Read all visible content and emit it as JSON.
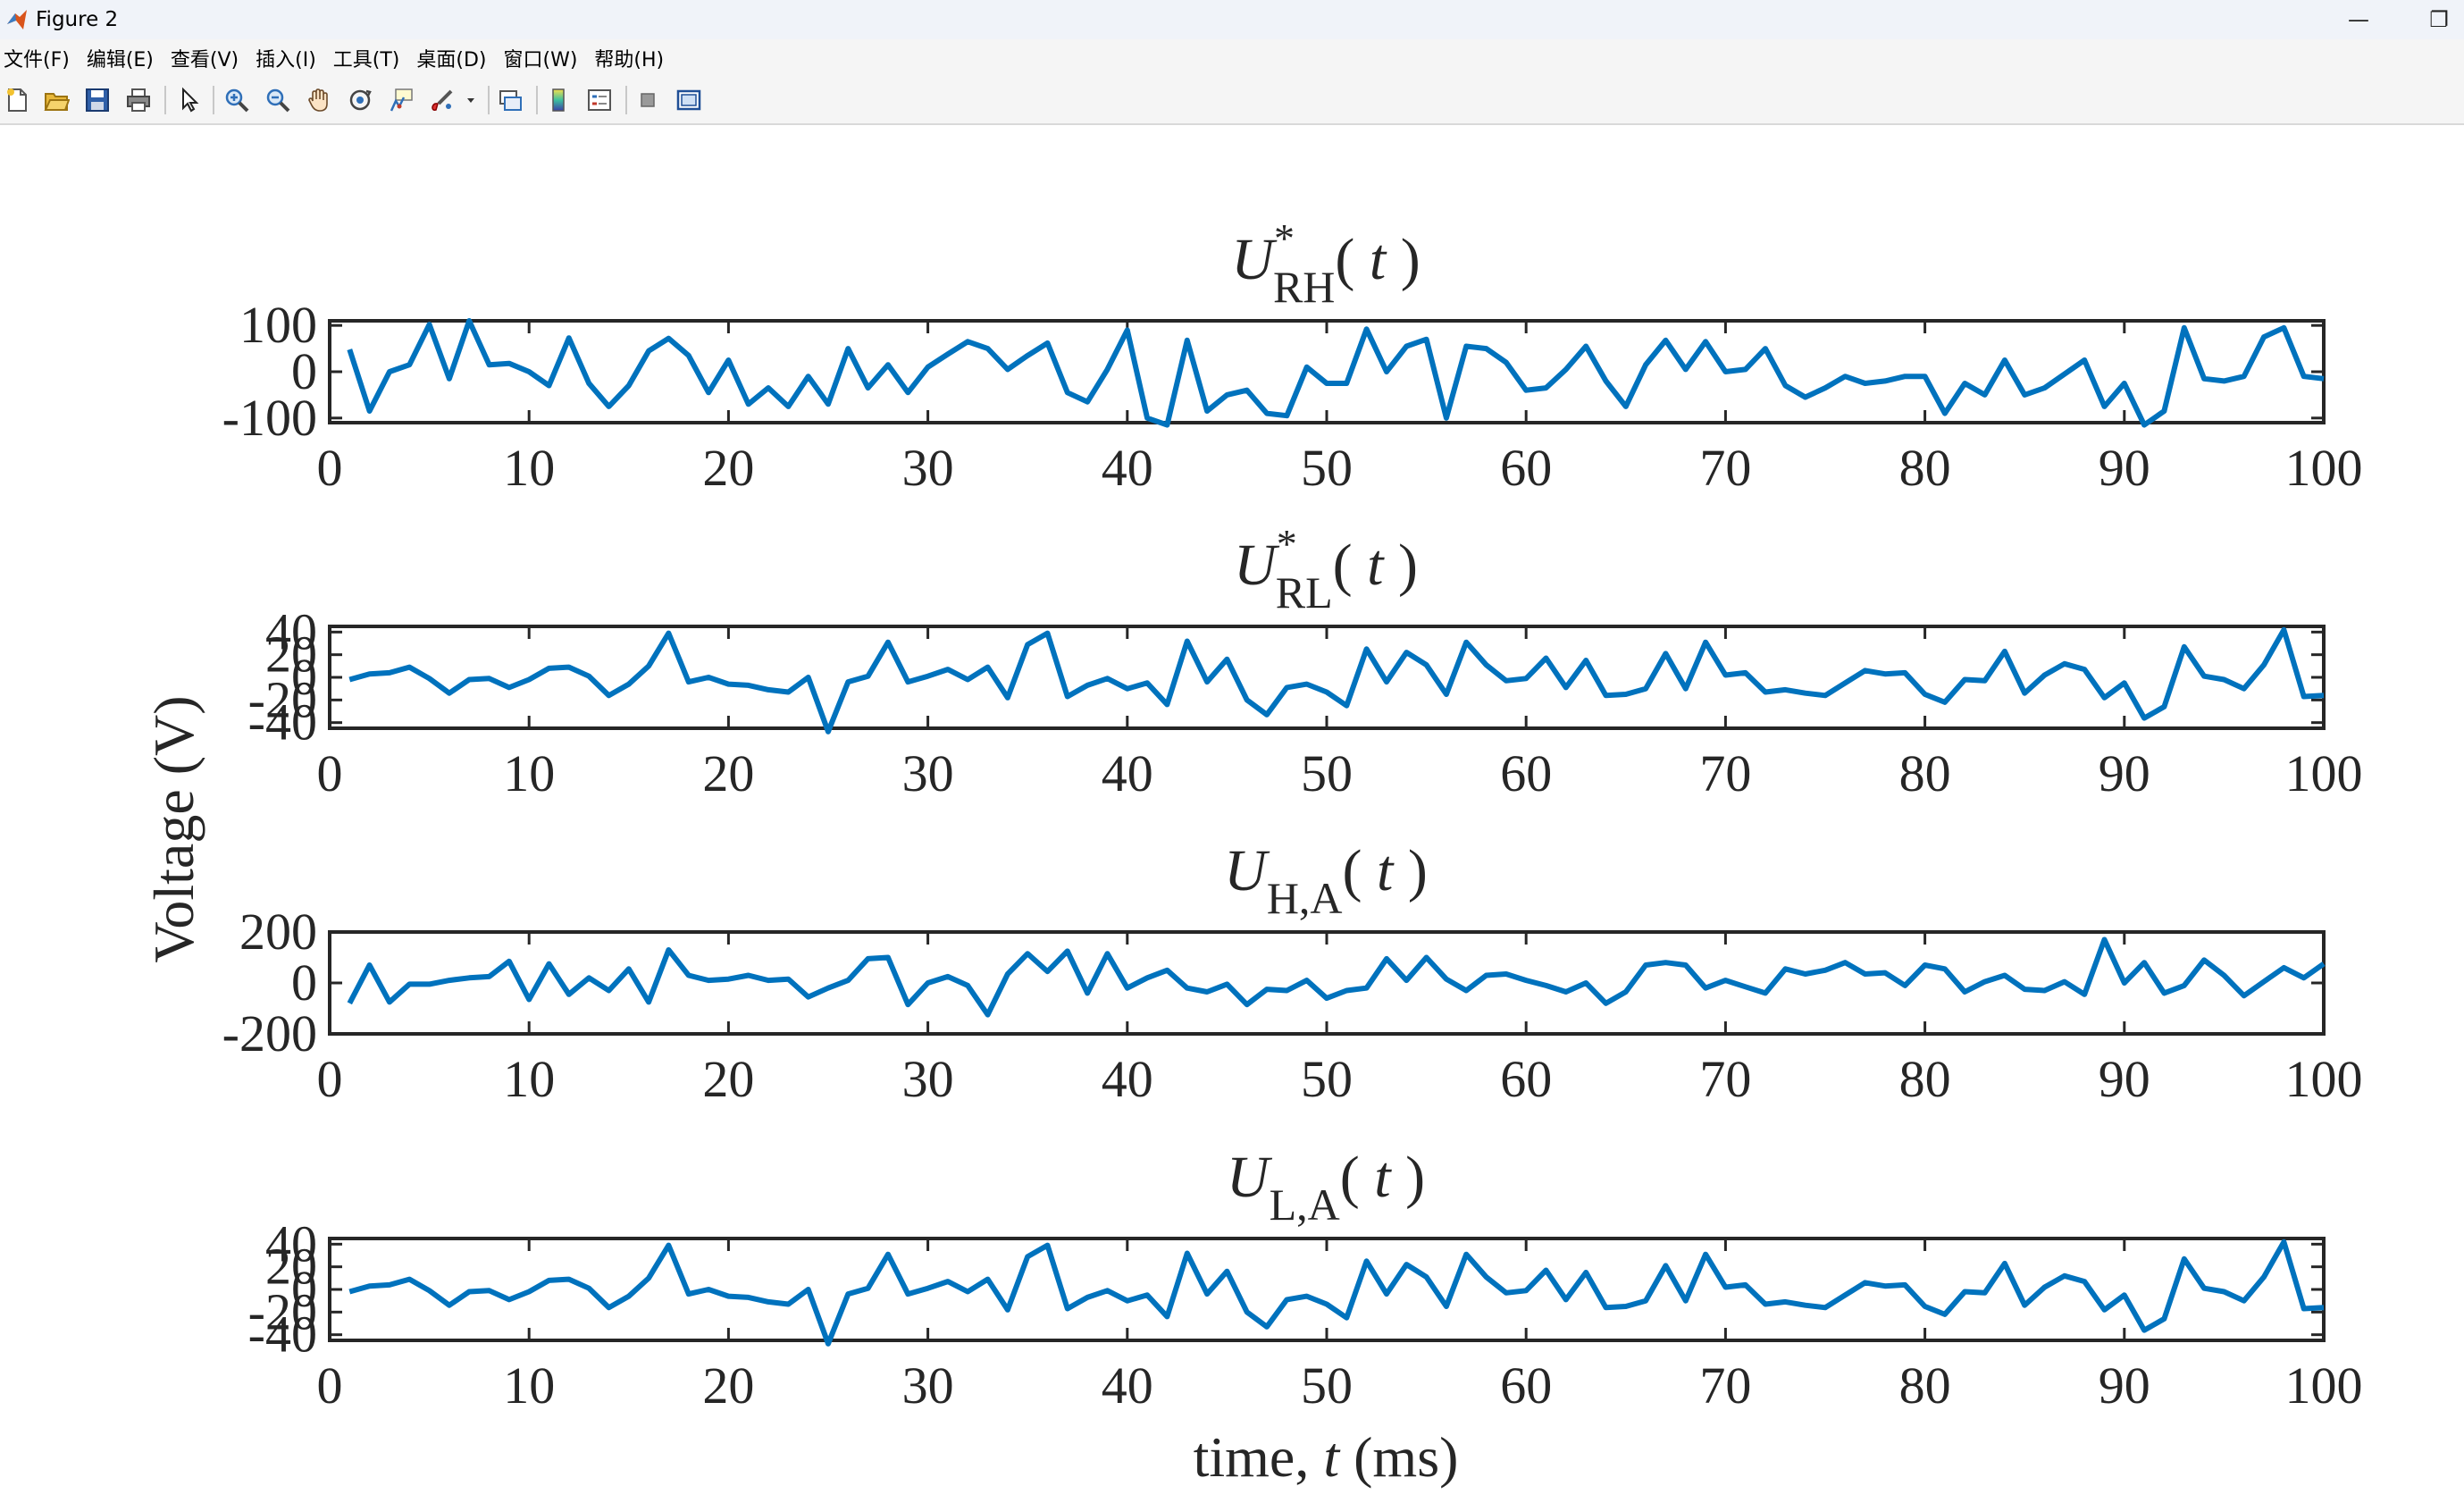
{
  "window": {
    "title": "Figure 2",
    "minimize_glyph": "—",
    "restore_glyph": "❐"
  },
  "menu": [
    "文件(F)",
    "编辑(E)",
    "查看(V)",
    "插入(I)",
    "工具(T)",
    "桌面(D)",
    "窗口(W)",
    "帮助(H)"
  ],
  "toolbar_icons": [
    "new-figure-icon",
    "open-file-icon",
    "save-icon",
    "print-icon",
    "pointer-icon",
    "zoom-in-icon",
    "zoom-out-icon",
    "pan-hand-icon",
    "rotate-3d-icon",
    "data-cursor-icon",
    "brush-icon",
    "link-plot-icon",
    "colorbar-icon",
    "legend-icon",
    "hide-plot-tools-icon",
    "show-plot-tools-icon"
  ],
  "colors": {
    "line": "#0072BD",
    "axes": "#262626"
  },
  "chart_data": {
    "type": "line",
    "ylabel": "Voltage (V)",
    "xlabel_parts": {
      "a": "time, ",
      "b": "t",
      "c": " (ms)"
    },
    "subplots": [
      {
        "title": {
          "U": "U",
          "sup": "*",
          "sub": "RH",
          "t": "t"
        },
        "xlim": [
          0,
          100
        ],
        "ylim": [
          -110,
          110
        ],
        "xticks": [
          "0",
          "10",
          "20",
          "30",
          "40",
          "50",
          "60",
          "70",
          "80",
          "90",
          "100"
        ],
        "yticks": [
          {
            "v": 100,
            "label": "100"
          },
          {
            "v": 0,
            "label": "0"
          },
          {
            "v": -100,
            "label": "-100"
          }
        ],
        "x": [
          1,
          2,
          3,
          4,
          5,
          6,
          7,
          8,
          9,
          10,
          11,
          12,
          13,
          14,
          15,
          16,
          17,
          18,
          19,
          20,
          21,
          22,
          23,
          24,
          25,
          26,
          27,
          28,
          29,
          30,
          31,
          32,
          33,
          34,
          35,
          36,
          37,
          38,
          39,
          40,
          41,
          42,
          43,
          44,
          45,
          46,
          47,
          48,
          49,
          50,
          51,
          52,
          53,
          54,
          55,
          56,
          57,
          58,
          59,
          60,
          61,
          62,
          63,
          64,
          65,
          66,
          67,
          68,
          69,
          70,
          71,
          72,
          73,
          74,
          75,
          76,
          77,
          78,
          79,
          80,
          81,
          82,
          83,
          84,
          85,
          86,
          87,
          88,
          89,
          90,
          91,
          92,
          93,
          94,
          95,
          96,
          97,
          98,
          99,
          100
        ],
        "y": [
          48,
          -85,
          0,
          15,
          102,
          -15,
          110,
          15,
          18,
          0,
          -30,
          73,
          -25,
          -75,
          -30,
          45,
          72,
          35,
          -45,
          25,
          -70,
          -35,
          -75,
          -10,
          -70,
          50,
          -35,
          15,
          -45,
          10,
          38,
          65,
          50,
          5,
          35,
          62,
          -45,
          -65,
          5,
          90,
          -100,
          -115,
          68,
          -85,
          -50,
          -40,
          -90,
          -95,
          10,
          -25,
          -25,
          92,
          0,
          55,
          70,
          -100,
          55,
          50,
          20,
          -40,
          -35,
          5,
          55,
          -20,
          -75,
          15,
          68,
          5,
          65,
          0,
          5,
          50,
          -30,
          -55,
          -35,
          -10,
          -25,
          -20,
          -10,
          -10,
          -90,
          -25,
          -50,
          25,
          -50,
          -35,
          -5,
          25,
          -75,
          -25,
          -115,
          -85,
          95,
          -15,
          -20,
          -10,
          75,
          95,
          -10,
          -15
        ]
      },
      {
        "title": {
          "U": "U",
          "sup": "*",
          "sub": "RL",
          "t": "t"
        },
        "xlim": [
          0,
          100
        ],
        "ylim": [
          -45,
          45
        ],
        "xticks": [
          "0",
          "10",
          "20",
          "30",
          "40",
          "50",
          "60",
          "70",
          "80",
          "90",
          "100"
        ],
        "yticks": [
          {
            "v": 40,
            "label": "40"
          },
          {
            "v": 20,
            "label": "20"
          },
          {
            "v": 0,
            "label": "0"
          },
          {
            "v": -20,
            "label": "-20"
          },
          {
            "v": -40,
            "label": "-40"
          }
        ],
        "x": [
          1,
          2,
          3,
          4,
          5,
          6,
          7,
          8,
          9,
          10,
          11,
          12,
          13,
          14,
          15,
          16,
          17,
          18,
          19,
          20,
          21,
          22,
          23,
          24,
          25,
          26,
          27,
          28,
          29,
          30,
          31,
          32,
          33,
          34,
          35,
          36,
          37,
          38,
          39,
          40,
          41,
          42,
          43,
          44,
          45,
          46,
          47,
          48,
          49,
          50,
          51,
          52,
          53,
          54,
          55,
          56,
          57,
          58,
          59,
          60,
          61,
          62,
          63,
          64,
          65,
          66,
          67,
          68,
          69,
          70,
          71,
          72,
          73,
          74,
          75,
          76,
          77,
          78,
          79,
          80,
          81,
          82,
          83,
          84,
          85,
          86,
          87,
          88,
          89,
          90,
          91,
          92,
          93,
          94,
          95,
          96,
          97,
          98,
          99,
          100
        ],
        "y": [
          -2,
          3,
          4,
          9,
          -1,
          -14,
          -2,
          -1,
          -9,
          -2,
          8,
          9,
          1,
          -16,
          -6,
          10,
          39,
          -4,
          0,
          -6,
          -7,
          -11,
          -13,
          0,
          -48,
          -4,
          1,
          31,
          -4,
          1,
          7,
          -2,
          9,
          -18,
          29,
          39,
          -17,
          -7,
          -1,
          -10,
          -5,
          -24,
          32,
          -4,
          16,
          -20,
          -33,
          -9,
          -6,
          -13,
          -25,
          25,
          -4,
          22,
          11,
          -15,
          31,
          11,
          -3,
          -1,
          17,
          -9,
          15,
          -16,
          -15,
          -10,
          21,
          -10,
          31,
          2,
          4,
          -13,
          -11,
          -14,
          -16,
          -5,
          6,
          3,
          4,
          -15,
          -22,
          -2,
          -3,
          23,
          -14,
          2,
          12,
          7,
          -18,
          -5,
          -36,
          -26,
          27,
          1,
          -2,
          -10,
          11,
          42,
          -17,
          -16
        ]
      },
      {
        "title": {
          "U": "U",
          "sup": "",
          "sub": "H,A",
          "t": "t"
        },
        "xlim": [
          0,
          100
        ],
        "ylim": [
          -200,
          200
        ],
        "xticks": [
          "0",
          "10",
          "20",
          "30",
          "40",
          "50",
          "60",
          "70",
          "80",
          "90",
          "100"
        ],
        "yticks": [
          {
            "v": 200,
            "label": "200"
          },
          {
            "v": 0,
            "label": "0"
          },
          {
            "v": -200,
            "label": "-200"
          }
        ],
        "x": [
          1,
          2,
          3,
          4,
          5,
          6,
          7,
          8,
          9,
          10,
          11,
          12,
          13,
          14,
          15,
          16,
          17,
          18,
          19,
          20,
          21,
          22,
          23,
          24,
          25,
          26,
          27,
          28,
          29,
          30,
          31,
          32,
          33,
          34,
          35,
          36,
          37,
          38,
          39,
          40,
          41,
          42,
          43,
          44,
          45,
          46,
          47,
          48,
          49,
          50,
          51,
          52,
          53,
          54,
          55,
          56,
          57,
          58,
          59,
          60,
          61,
          62,
          63,
          64,
          65,
          66,
          67,
          68,
          69,
          70,
          71,
          72,
          73,
          74,
          75,
          76,
          77,
          78,
          79,
          80,
          81,
          82,
          83,
          84,
          85,
          86,
          87,
          88,
          89,
          90,
          91,
          92,
          93,
          94,
          95,
          96,
          97,
          98,
          99,
          100
        ],
        "y": [
          -80,
          70,
          -75,
          -5,
          -5,
          10,
          20,
          25,
          85,
          -65,
          75,
          -45,
          20,
          -30,
          55,
          -75,
          130,
          30,
          10,
          15,
          30,
          10,
          15,
          -55,
          -20,
          10,
          95,
          100,
          -85,
          0,
          25,
          -10,
          -125,
          35,
          115,
          45,
          125,
          -40,
          115,
          -20,
          20,
          50,
          -20,
          -35,
          -5,
          -85,
          -25,
          -30,
          10,
          -60,
          -30,
          -20,
          95,
          10,
          100,
          15,
          -30,
          30,
          35,
          10,
          -10,
          -35,
          0,
          -80,
          -35,
          70,
          80,
          70,
          -20,
          10,
          -15,
          -40,
          55,
          35,
          50,
          80,
          35,
          40,
          -10,
          70,
          55,
          -35,
          5,
          30,
          -25,
          -30,
          5,
          -45,
          170,
          0,
          80,
          -40,
          -10,
          90,
          30,
          -50,
          5,
          60,
          20,
          75
        ]
      },
      {
        "title": {
          "U": "U",
          "sup": "",
          "sub": "L,A",
          "t": "t"
        },
        "xlim": [
          0,
          100
        ],
        "ylim": [
          -45,
          45
        ],
        "xticks": [
          "0",
          "10",
          "20",
          "30",
          "40",
          "50",
          "60",
          "70",
          "80",
          "90",
          "100"
        ],
        "yticks": [
          {
            "v": 40,
            "label": "40"
          },
          {
            "v": 20,
            "label": "20"
          },
          {
            "v": 0,
            "label": "0"
          },
          {
            "v": -20,
            "label": "-20"
          },
          {
            "v": -40,
            "label": "-40"
          }
        ],
        "x": [
          1,
          2,
          3,
          4,
          5,
          6,
          7,
          8,
          9,
          10,
          11,
          12,
          13,
          14,
          15,
          16,
          17,
          18,
          19,
          20,
          21,
          22,
          23,
          24,
          25,
          26,
          27,
          28,
          29,
          30,
          31,
          32,
          33,
          34,
          35,
          36,
          37,
          38,
          39,
          40,
          41,
          42,
          43,
          44,
          45,
          46,
          47,
          48,
          49,
          50,
          51,
          52,
          53,
          54,
          55,
          56,
          57,
          58,
          59,
          60,
          61,
          62,
          63,
          64,
          65,
          66,
          67,
          68,
          69,
          70,
          71,
          72,
          73,
          74,
          75,
          76,
          77,
          78,
          79,
          80,
          81,
          82,
          83,
          84,
          85,
          86,
          87,
          88,
          89,
          90,
          91,
          92,
          93,
          94,
          95,
          96,
          97,
          98,
          99,
          100
        ],
        "y": [
          -2,
          3,
          4,
          9,
          -1,
          -14,
          -2,
          -1,
          -9,
          -2,
          8,
          9,
          1,
          -16,
          -6,
          10,
          39,
          -4,
          0,
          -6,
          -7,
          -11,
          -13,
          0,
          -48,
          -4,
          1,
          31,
          -4,
          1,
          7,
          -2,
          9,
          -18,
          29,
          39,
          -17,
          -7,
          -1,
          -10,
          -5,
          -24,
          32,
          -4,
          16,
          -20,
          -33,
          -9,
          -6,
          -13,
          -25,
          25,
          -4,
          22,
          11,
          -15,
          31,
          11,
          -3,
          -1,
          17,
          -9,
          15,
          -16,
          -15,
          -10,
          21,
          -10,
          31,
          2,
          4,
          -13,
          -11,
          -14,
          -16,
          -5,
          6,
          3,
          4,
          -15,
          -22,
          -2,
          -3,
          23,
          -14,
          2,
          12,
          7,
          -18,
          -5,
          -36,
          -26,
          27,
          1,
          -2,
          -10,
          11,
          42,
          -17,
          -16
        ]
      }
    ]
  }
}
